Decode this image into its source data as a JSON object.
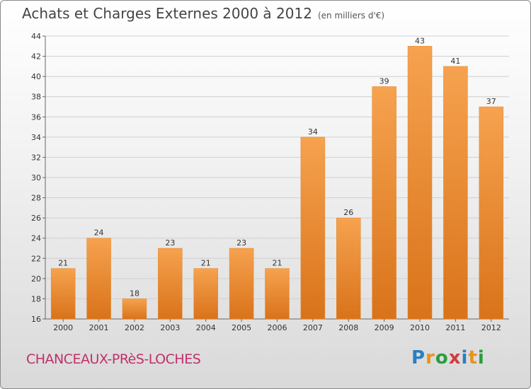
{
  "title": "Achats et Charges Externes 2000 à 2012",
  "subtitle": "(en milliers d'€)",
  "town": "CHANCEAUX-PRèS-LOCHES",
  "logo": {
    "text": "Proxiti",
    "letters": [
      "P",
      "r",
      "o",
      "x",
      "i",
      "t",
      "i"
    ],
    "colors": [
      "#2a7fc1",
      "#e8931e",
      "#2a9c3f",
      "#d43c3c",
      "#2a7fc1",
      "#e8931e",
      "#2a9c3f"
    ]
  },
  "colors": {
    "bar_top": "#f6a24f",
    "bar_bottom": "#d9731a",
    "bar_edge": "#e08a30",
    "label": "#333333"
  },
  "chart_data": {
    "type": "bar",
    "title": "Achats et Charges Externes 2000 à 2012",
    "categories": [
      "2000",
      "2001",
      "2002",
      "2003",
      "2004",
      "2005",
      "2006",
      "2007",
      "2008",
      "2009",
      "2010",
      "2011",
      "2012"
    ],
    "values": [
      21,
      24,
      18,
      23,
      21,
      23,
      21,
      34,
      26,
      39,
      43,
      41,
      37
    ],
    "ylim": [
      16,
      44
    ],
    "yticks": [
      16,
      18,
      20,
      22,
      24,
      26,
      28,
      30,
      32,
      34,
      36,
      38,
      40,
      42,
      44
    ],
    "grid": true,
    "xlabel": "",
    "ylabel": ""
  }
}
